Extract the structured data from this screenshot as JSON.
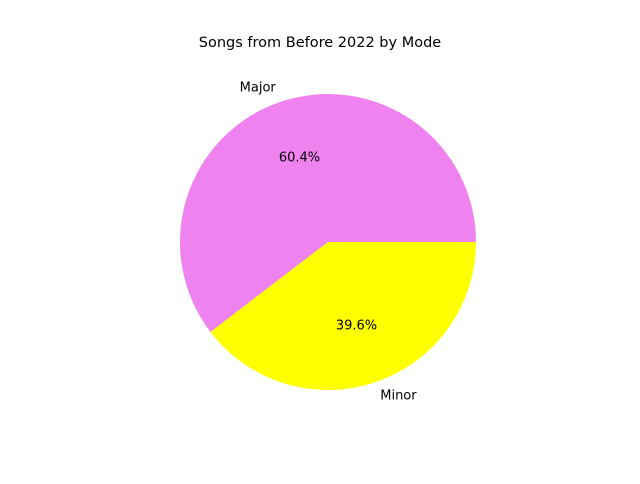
{
  "chart_data": {
    "type": "pie",
    "title": "Songs from Before 2022 by Mode",
    "slices": [
      {
        "label": "Major",
        "value": 60.4,
        "pct_label": "60.4%",
        "color": "#ee82ee"
      },
      {
        "label": "Minor",
        "value": 39.6,
        "pct_label": "39.6%",
        "color": "#ffff00"
      }
    ],
    "start_angle": 0,
    "direction": "counterclockwise",
    "legend": "none"
  }
}
